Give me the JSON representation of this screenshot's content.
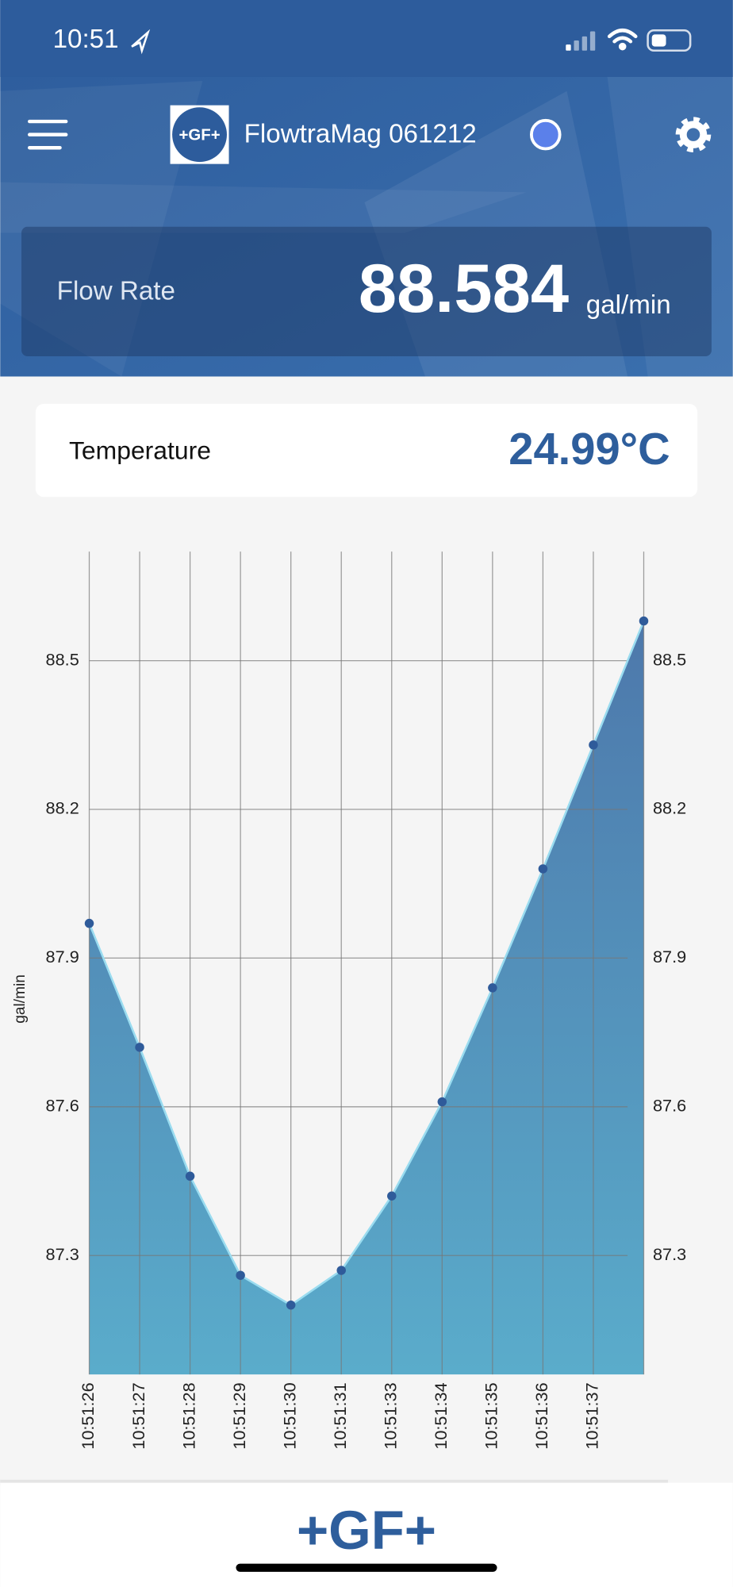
{
  "status_bar": {
    "time": "10:51"
  },
  "header": {
    "logo": "+GF+",
    "title": "FlowtraMag 061212"
  },
  "flow_rate": {
    "label": "Flow Rate",
    "value": "88.584",
    "unit": "gal/min"
  },
  "temperature": {
    "label": "Temperature",
    "value": "24.99°C"
  },
  "chart_data": {
    "type": "area",
    "y_label": "gal/min",
    "categories": [
      "10:51:26",
      "10:51:27",
      "10:51:28",
      "10:51:29",
      "10:51:30",
      "10:51:31",
      "10:51:33",
      "10:51:34",
      "10:51:35",
      "10:51:36",
      "10:51:37",
      null
    ],
    "values": [
      87.97,
      87.72,
      87.46,
      87.26,
      87.2,
      87.27,
      87.42,
      87.61,
      87.84,
      88.08,
      88.33,
      88.58
    ],
    "ylim": [
      87.06,
      88.72
    ],
    "yticks": [
      87.3,
      87.6,
      87.9,
      88.2,
      88.5
    ],
    "y2lim": [
      87.06,
      88.72
    ],
    "y2ticks": [
      87.3,
      87.6,
      87.9,
      88.2,
      88.5
    ],
    "grid": true,
    "color": "#5a9cc4",
    "line_color": "#9adcf0",
    "marker_color": "#2f5b9a"
  },
  "footer": {
    "logo": "+GF+"
  }
}
